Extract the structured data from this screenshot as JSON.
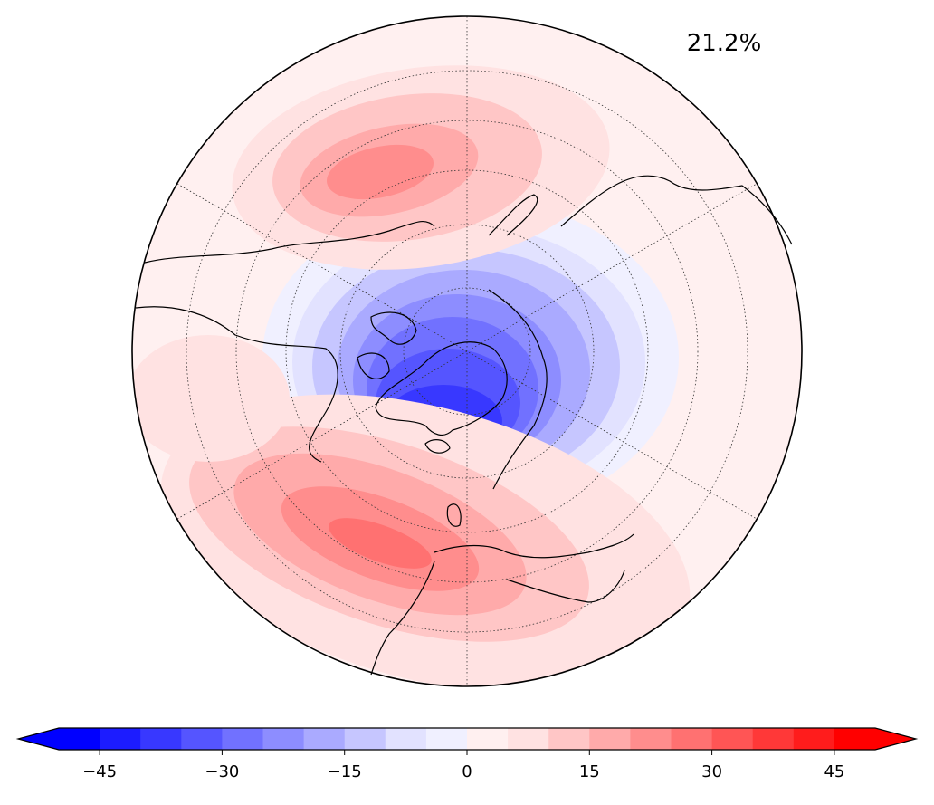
{
  "map": {
    "variance_label": "21.2%",
    "colors": {
      "ocean_background": "#fff0f0",
      "coastline": "#000000",
      "grid": "#333333"
    }
  },
  "colorbar": {
    "tick_labels": [
      "−45",
      "−30",
      "−15",
      "0",
      "15",
      "30",
      "45"
    ],
    "tick_values": [
      -45,
      -30,
      -15,
      0,
      15,
      30,
      45
    ],
    "range": [
      -50,
      50
    ],
    "step": 5,
    "extend": "both",
    "colors": [
      "#0000ff",
      "#1c1cff",
      "#3838ff",
      "#5555ff",
      "#7171ff",
      "#8d8dff",
      "#aaaaff",
      "#c6c6ff",
      "#e2e2ff",
      "#f0f0ff",
      "#fff0f0",
      "#ffe2e2",
      "#ffc6c6",
      "#ffaaaa",
      "#ff8d8d",
      "#ff7171",
      "#ff5555",
      "#ff3838",
      "#ff1c1c",
      "#ff0000"
    ],
    "under_color": "#0000ff",
    "over_color": "#ff0000"
  }
}
